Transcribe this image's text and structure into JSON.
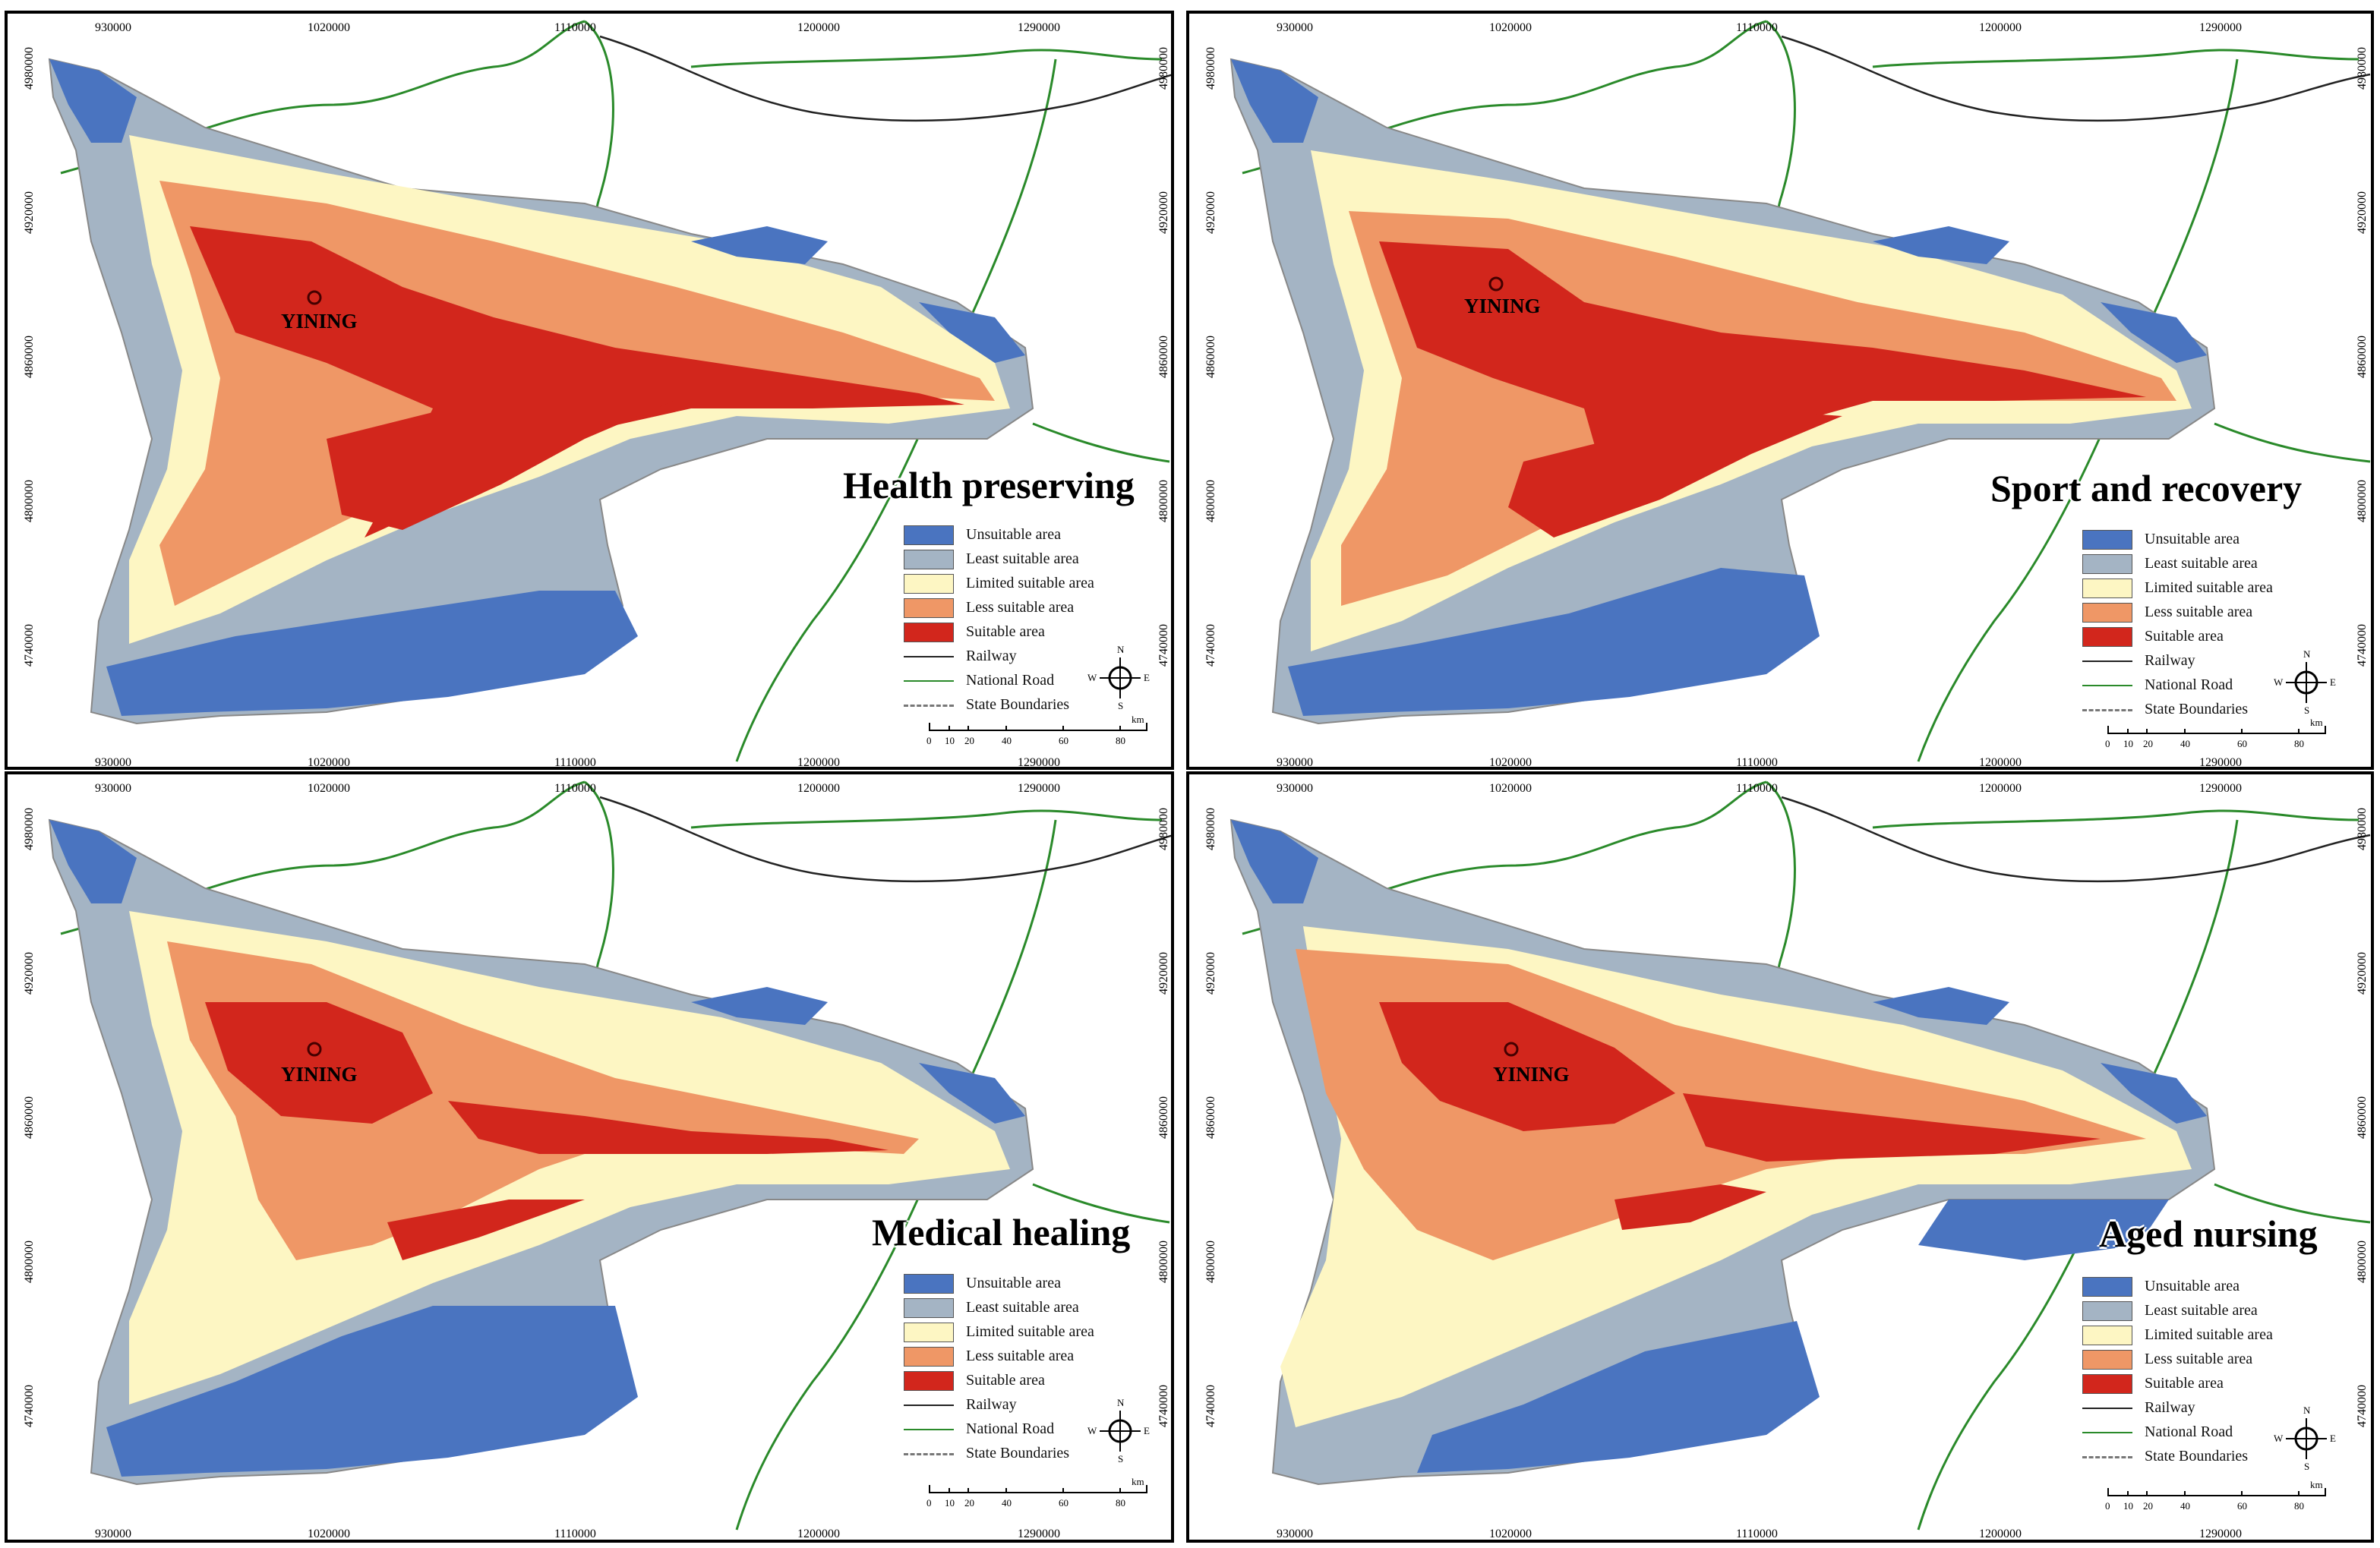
{
  "city_label": "YINING",
  "km_label": "km",
  "scale_ticks": [
    "0",
    "10",
    "20",
    "40",
    "60",
    "80"
  ],
  "compass_letters": {
    "n": "N",
    "s": "S",
    "e": "E",
    "w": "W"
  },
  "x_ticks": [
    "930000",
    "1020000",
    "1110000",
    "1200000",
    "1290000"
  ],
  "y_ticks": [
    "4980000",
    "4920000",
    "4860000",
    "4800000",
    "4740000"
  ],
  "legend": [
    {
      "label": "Unsuitable area",
      "color": "#4a74c0"
    },
    {
      "label": "Least suitable area",
      "color": "#a4b4c4"
    },
    {
      "label": "Limited suitable area",
      "color": "#fdf6c3"
    },
    {
      "label": "Less suitable area",
      "color": "#ef9766"
    },
    {
      "label": "Suitable area",
      "color": "#d2261c"
    },
    {
      "label": "Railway",
      "color": "#222222"
    },
    {
      "label": "National Road",
      "color": "#2a8a2a"
    },
    {
      "label": "State Boundaries",
      "color": "#777777"
    }
  ],
  "panels": [
    {
      "title": "Health preserving"
    },
    {
      "title": "Sport and recovery"
    },
    {
      "title": "Medical healing"
    },
    {
      "title": "Aged nursing"
    }
  ]
}
